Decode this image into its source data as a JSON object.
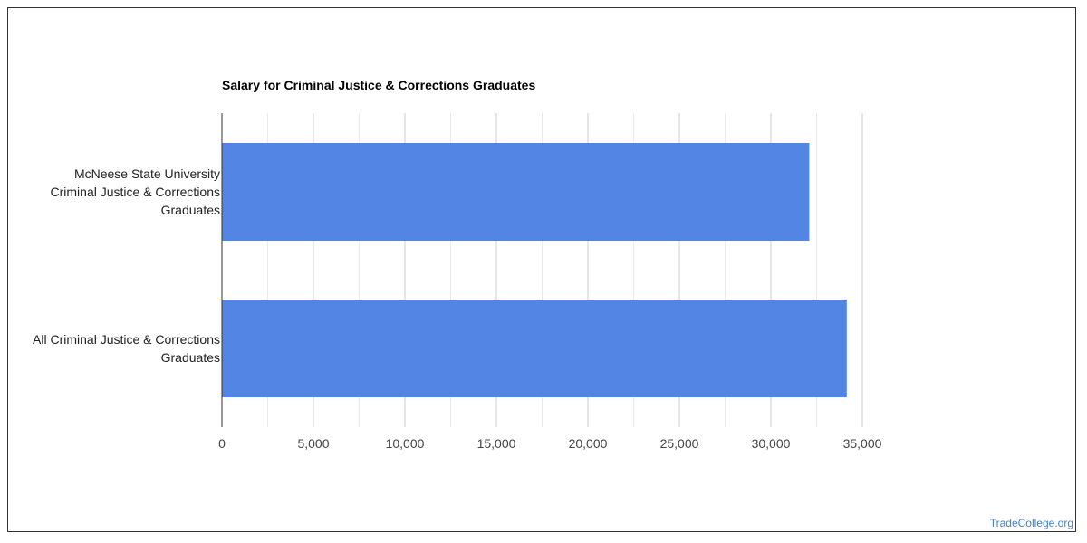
{
  "chart_data": {
    "type": "bar",
    "orientation": "horizontal",
    "title": "Salary for Criminal Justice & Corrections Graduates",
    "xlabel": "",
    "ylabel": "",
    "categories": [
      [
        "McNeese State University",
        "Criminal Justice & Corrections",
        "Graduates"
      ],
      [
        "All Criminal Justice & Corrections",
        "Graduates"
      ]
    ],
    "values": [
      32100,
      34150
    ],
    "xlim": [
      0,
      35000
    ],
    "x_ticks": [
      0,
      5000,
      10000,
      15000,
      20000,
      25000,
      30000,
      35000
    ],
    "x_tick_labels": [
      "0",
      "5,000",
      "10,000",
      "15,000",
      "20,000",
      "25,000",
      "30,000",
      "35,000"
    ],
    "grid": true,
    "legend": "none",
    "colors": {
      "bar": "#5386e4",
      "grid_major": "#cccccc",
      "grid_minor": "#ebebeb",
      "axis": "#333333",
      "label_text": "#222222"
    }
  },
  "watermark": {
    "text": "TradeCollege.org",
    "color": "#4a7ebb"
  }
}
